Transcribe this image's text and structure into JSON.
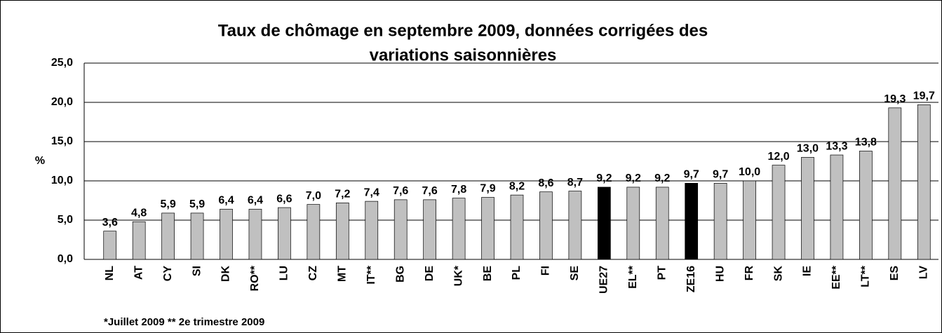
{
  "chart_data": {
    "type": "bar",
    "title": [
      "Taux de chômage en septembre 2009, données corrigées des",
      "variations saisonnières"
    ],
    "y_label": "%",
    "footnote": "*Juillet 2009  ** 2e trimestre 2009",
    "categories": [
      "NL",
      "AT",
      "CY",
      "SI",
      "DK",
      "RO**",
      "LU",
      "CZ",
      "MT",
      "IT**",
      "BG",
      "DE",
      "UK*",
      "BE",
      "PL",
      "FI",
      "SE",
      "UE27",
      "EL**",
      "PT",
      "ZE16",
      "HU",
      "FR",
      "SK",
      "IE",
      "EE**",
      "LT**",
      "ES",
      "LV"
    ],
    "values": [
      3.6,
      4.8,
      5.9,
      5.9,
      6.4,
      6.4,
      6.6,
      7.0,
      7.2,
      7.4,
      7.6,
      7.6,
      7.8,
      7.9,
      8.2,
      8.6,
      8.7,
      9.2,
      9.2,
      9.2,
      9.7,
      9.7,
      10.0,
      12.0,
      13.0,
      13.3,
      13.8,
      19.3,
      19.7
    ],
    "value_labels": [
      "3,6",
      "4,8",
      "5,9",
      "5,9",
      "6,4",
      "6,4",
      "6,6",
      "7,0",
      "7,2",
      "7,4",
      "7,6",
      "7,6",
      "7,8",
      "7,9",
      "8,2",
      "8,6",
      "8,7",
      "9,2",
      "9,2",
      "9,2",
      "9,7",
      "9,7",
      "10,0",
      "12,0",
      "13,0",
      "13,3",
      "13,8",
      "19,3",
      "19,7"
    ],
    "colors": [
      "#c0c0c0",
      "#c0c0c0",
      "#c0c0c0",
      "#c0c0c0",
      "#c0c0c0",
      "#c0c0c0",
      "#c0c0c0",
      "#c0c0c0",
      "#c0c0c0",
      "#c0c0c0",
      "#c0c0c0",
      "#c0c0c0",
      "#c0c0c0",
      "#c0c0c0",
      "#c0c0c0",
      "#c0c0c0",
      "#c0c0c0",
      "#000000",
      "#c0c0c0",
      "#c0c0c0",
      "#000000",
      "#c0c0c0",
      "#c0c0c0",
      "#c0c0c0",
      "#c0c0c0",
      "#c0c0c0",
      "#c0c0c0",
      "#c0c0c0",
      "#c0c0c0"
    ],
    "ylim": [
      0,
      25
    ],
    "yticks": [
      {
        "value": 0,
        "label": "0,0"
      },
      {
        "value": 5,
        "label": "5,0"
      },
      {
        "value": 10,
        "label": "10,0"
      },
      {
        "value": 15,
        "label": "15,0"
      },
      {
        "value": 20,
        "label": "20,0"
      },
      {
        "value": 25,
        "label": "25,0"
      }
    ],
    "grid": true
  }
}
